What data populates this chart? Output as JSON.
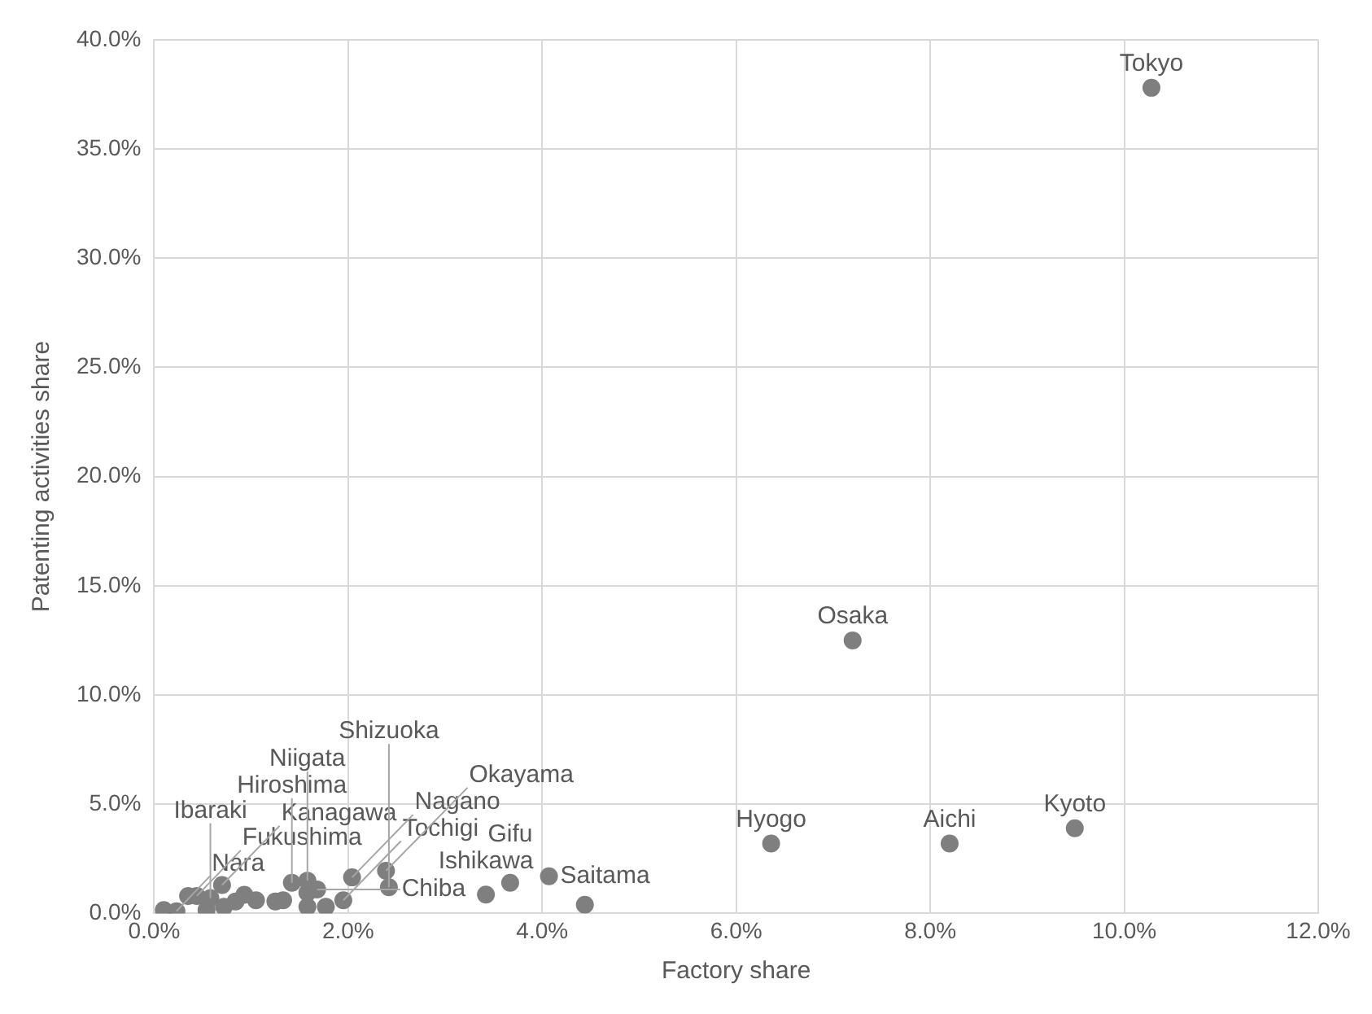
{
  "chart_data": {
    "type": "scatter",
    "xlabel": "Factory share",
    "ylabel": "Patenting activities share",
    "x": [
      10.28,
      7.2,
      6.36,
      8.2,
      9.49,
      3.42,
      3.67,
      4.07,
      4.44,
      0.1,
      0.23,
      0.35,
      0.44,
      0.54,
      0.58,
      0.7,
      0.72,
      0.84,
      0.93,
      1.05,
      1.25,
      1.33,
      1.42,
      1.58,
      1.58,
      1.68,
      1.58,
      1.77,
      1.95,
      2.04,
      2.39,
      2.42
    ],
    "series": [
      {
        "color": "#7f7f7f",
        "values": [
          37.8,
          12.5,
          3.2,
          3.2,
          3.9,
          0.86,
          1.4,
          1.7,
          0.4,
          0.15,
          0.1,
          0.8,
          0.8,
          0.15,
          0.7,
          1.3,
          0.3,
          0.55,
          0.85,
          0.6,
          0.55,
          0.6,
          1.4,
          1.5,
          0.95,
          1.1,
          0.3,
          0.3,
          0.6,
          1.65,
          1.95,
          1.2
        ]
      }
    ],
    "annotations": [
      {
        "text": "Tokyo",
        "x": 10.28,
        "y": 37.8
      },
      {
        "text": "Osaka",
        "x": 7.2,
        "y": 12.5
      },
      {
        "text": "Hyogo",
        "x": 6.36,
        "y": 3.2
      },
      {
        "text": "Aichi",
        "x": 8.2,
        "y": 3.2
      },
      {
        "text": "Kyoto",
        "x": 9.49,
        "y": 3.9
      },
      {
        "text": "Ishikawa",
        "x": 3.42,
        "y": 0.86
      },
      {
        "text": "Gifu",
        "x": 3.67,
        "y": 1.4
      },
      {
        "text": "Saitama",
        "x": 4.07,
        "y": 1.7
      },
      {
        "text": "Nara",
        "x": 0.23,
        "y": 0.1
      },
      {
        "text": "Fukushima",
        "x": 0.44,
        "y": 0.8
      },
      {
        "text": "Ibaraki",
        "x": 0.58,
        "y": 0.7
      },
      {
        "text": "Kanagawa",
        "x": 0.7,
        "y": 1.3
      },
      {
        "text": "Hiroshima",
        "x": 1.42,
        "y": 1.4
      },
      {
        "text": "Niigata",
        "x": 1.58,
        "y": 1.5
      },
      {
        "text": "Chiba",
        "x": 1.68,
        "y": 1.1
      },
      {
        "text": "Tochigi",
        "x": 1.95,
        "y": 0.6
      },
      {
        "text": "Nagano",
        "x": 2.04,
        "y": 1.65
      },
      {
        "text": "Okayama",
        "x": 2.39,
        "y": 1.95
      },
      {
        "text": "Shizuoka",
        "x": 2.42,
        "y": 1.2
      }
    ],
    "marker": "circle",
    "grid": true,
    "legend": false,
    "xlim": [
      0,
      12
    ],
    "xticks": [
      {
        "value": 0,
        "label": "0.0%"
      },
      {
        "value": 2,
        "label": "2.0%"
      },
      {
        "value": 4,
        "label": "4.0%"
      },
      {
        "value": 6,
        "label": "6.0%"
      },
      {
        "value": 8,
        "label": "8.0%"
      },
      {
        "value": 10,
        "label": "10.0%"
      },
      {
        "value": 12,
        "label": "12.0%"
      }
    ],
    "ylim": [
      0,
      40
    ],
    "yticks": [
      {
        "value": 0,
        "label": "0.0%"
      },
      {
        "value": 5,
        "label": "5.0%"
      },
      {
        "value": 10,
        "label": "10.0%"
      },
      {
        "value": 15,
        "label": "15.0%"
      },
      {
        "value": 20,
        "label": "20.0%"
      },
      {
        "value": 25,
        "label": "25.0%"
      },
      {
        "value": 30,
        "label": "30.0%"
      },
      {
        "value": 35,
        "label": "35.0%"
      },
      {
        "value": 40,
        "label": "40.0%"
      }
    ]
  }
}
